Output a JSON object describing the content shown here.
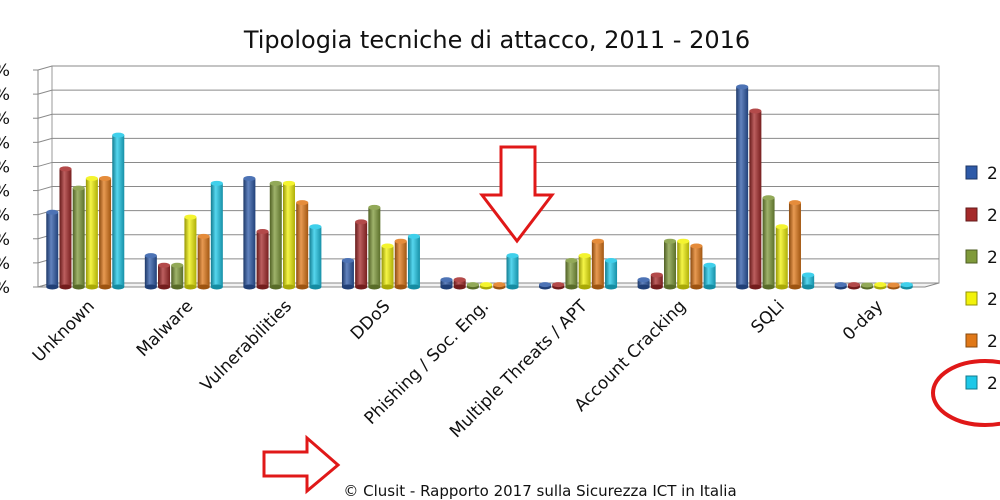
{
  "chart_data": {
    "type": "bar",
    "title": "Tipologia tecniche di attacco, 2011 - 2016",
    "footer": "© Clusit - Rapporto 2017 sulla Sicurezza ICT in Italia",
    "categories": [
      "Unknown",
      "Malware",
      "Vulnerabilities",
      "DDoS",
      "Phishing / Soc. Eng.",
      "Multiple Threats / APT",
      "Account Cracking",
      "SQLi",
      "0-day"
    ],
    "ylim": [
      0,
      9
    ],
    "y_ticks": [
      "%",
      "%",
      "%",
      "%",
      "%",
      "%",
      "%",
      "%",
      "%",
      "%"
    ],
    "grid": true,
    "legend": {
      "placement": "right",
      "labels": [
        "2",
        "2",
        "2",
        "2",
        "2",
        "2"
      ]
    },
    "series": [
      {
        "values": [
          3.1,
          1.3,
          4.5,
          1.1,
          0.3,
          0.1,
          0.3,
          8.3,
          0.1
        ],
        "color": "#2e5aa8"
      },
      {
        "values": [
          4.9,
          0.9,
          2.3,
          2.7,
          0.3,
          0.1,
          0.5,
          7.3,
          0.1
        ],
        "color": "#a52a2a"
      },
      {
        "values": [
          4.1,
          0.9,
          4.3,
          3.3,
          0.1,
          1.1,
          1.9,
          3.7,
          0.0
        ],
        "color": "#7f9a3a"
      },
      {
        "values": [
          4.5,
          2.9,
          4.3,
          1.7,
          0.1,
          1.3,
          1.9,
          2.5,
          0.1
        ],
        "color": "#f2f20a"
      },
      {
        "values": [
          4.5,
          2.1,
          3.5,
          1.9,
          0.1,
          1.9,
          1.7,
          3.5,
          0.0
        ],
        "color": "#e07818"
      },
      {
        "values": [
          6.3,
          4.3,
          2.5,
          2.1,
          1.3,
          1.1,
          0.9,
          0.5,
          0.1
        ],
        "color": "#1ec8e8"
      }
    ],
    "annotation_color": "#e01818"
  }
}
